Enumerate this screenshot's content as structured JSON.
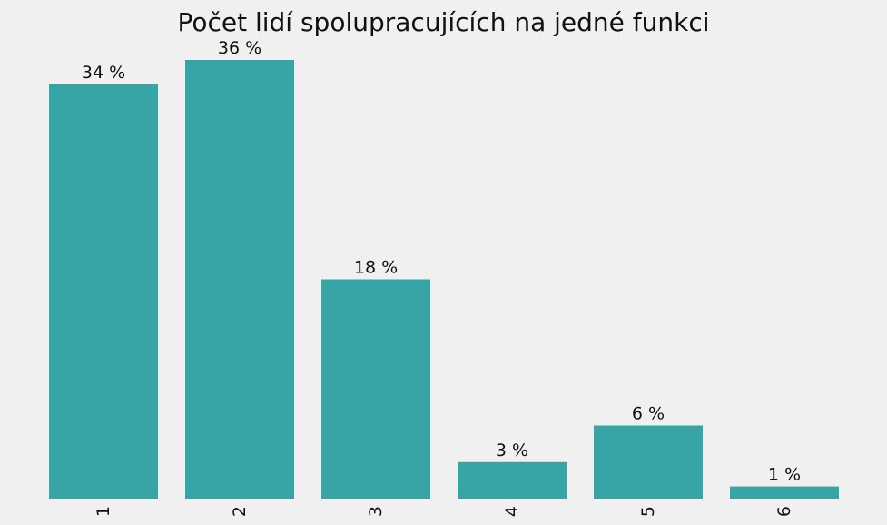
{
  "colors": {
    "background": "#f0f0f0",
    "bar": "#37a5a5",
    "text": "#111111"
  },
  "chart_data": {
    "type": "bar",
    "title": "Počet lidí spolupracujících na jedné funkci",
    "xlabel": "",
    "ylabel": "",
    "categories": [
      "1",
      "2",
      "3",
      "4",
      "5",
      "6"
    ],
    "values": [
      34,
      36,
      18,
      3,
      6,
      1
    ],
    "value_labels": [
      "34 %",
      "36 %",
      "18 %",
      "3 %",
      "6 %",
      "1 %"
    ],
    "unit": "%",
    "ylim": [
      0,
      36
    ],
    "grid": false,
    "legend": "none",
    "x_tick_rotation": "vertical"
  }
}
